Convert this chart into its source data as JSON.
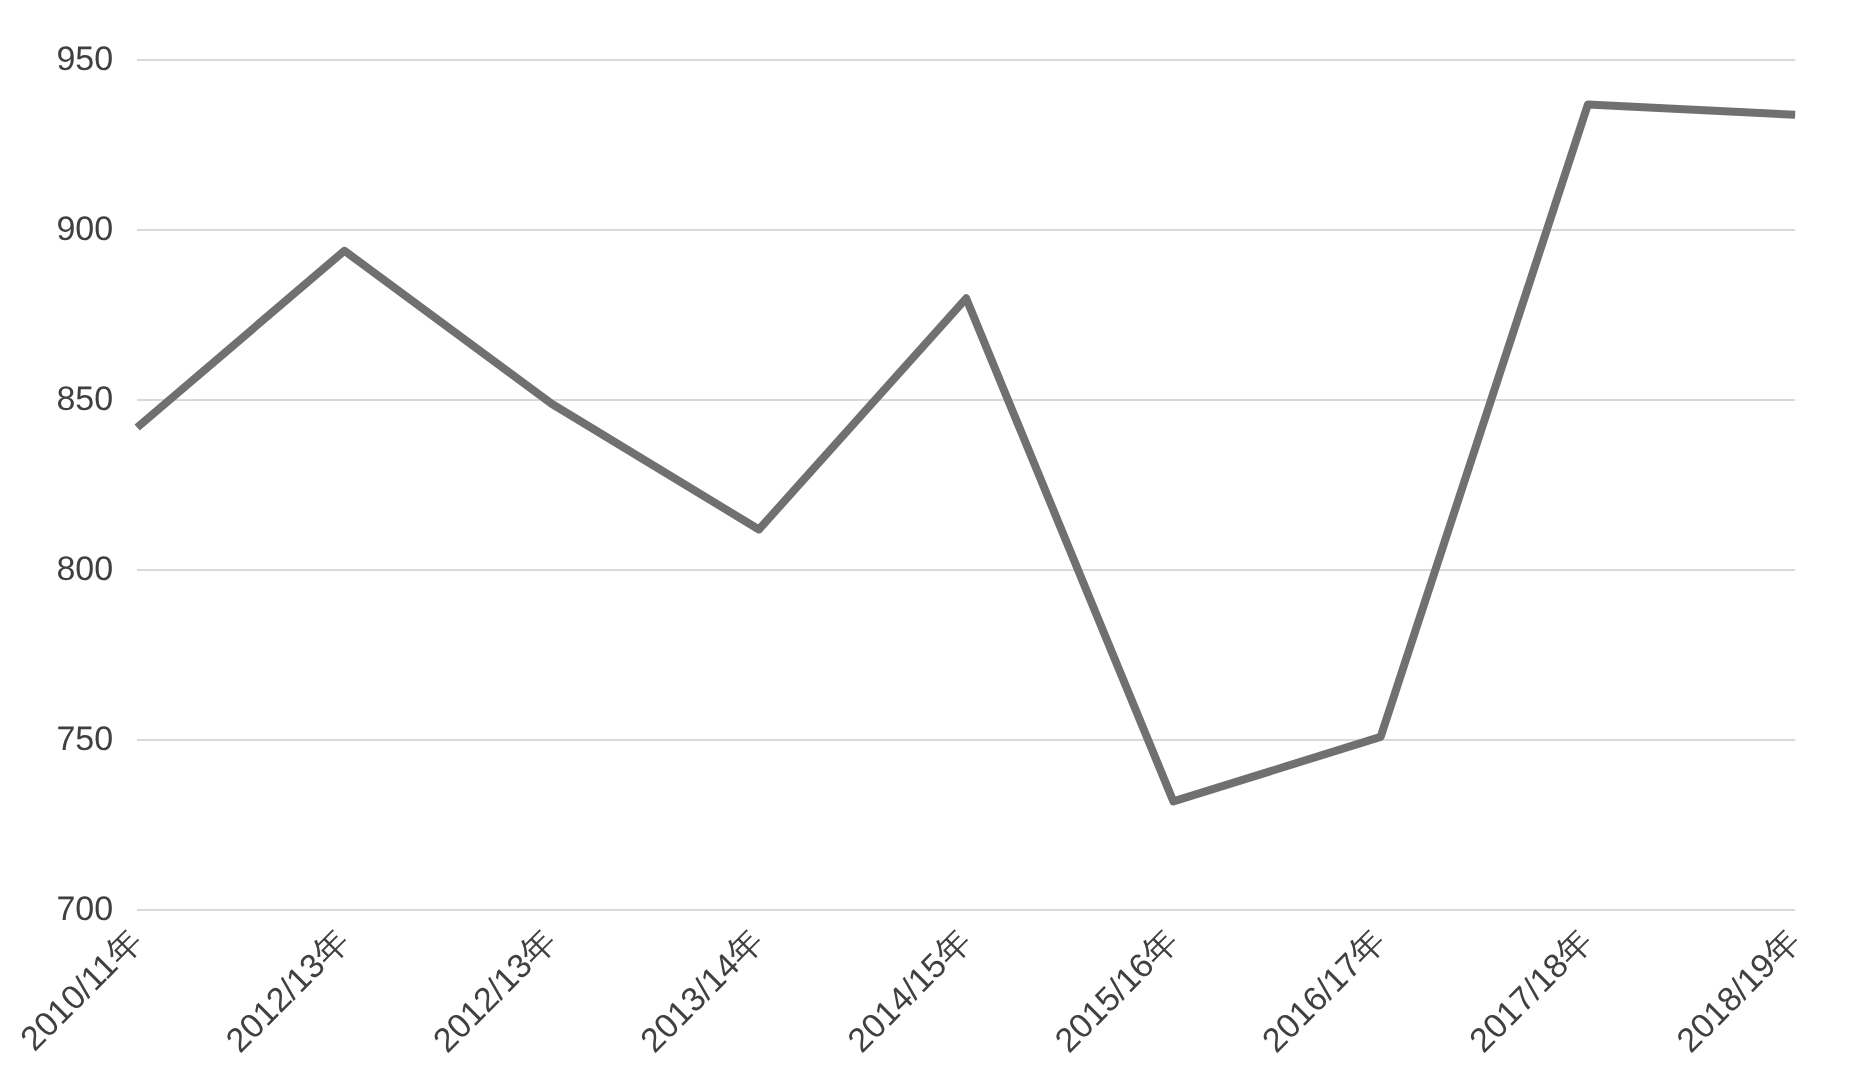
{
  "chart_data": {
    "type": "line",
    "categories": [
      "2010/11年",
      "2012/13年",
      "2012/13年",
      "2013/14年",
      "2014/15年",
      "2015/16年",
      "2016/17年",
      "2017/18年",
      "2018/19年"
    ],
    "series": [
      {
        "color": "#707070",
        "values": [
          842,
          894,
          849,
          812,
          880,
          732,
          751,
          937,
          934
        ]
      }
    ],
    "ylim": [
      700,
      950
    ],
    "yticks": [
      700,
      750,
      800,
      850,
      900,
      950
    ],
    "grid": "y",
    "legend": false,
    "marker": "none",
    "line_style": "solid"
  }
}
